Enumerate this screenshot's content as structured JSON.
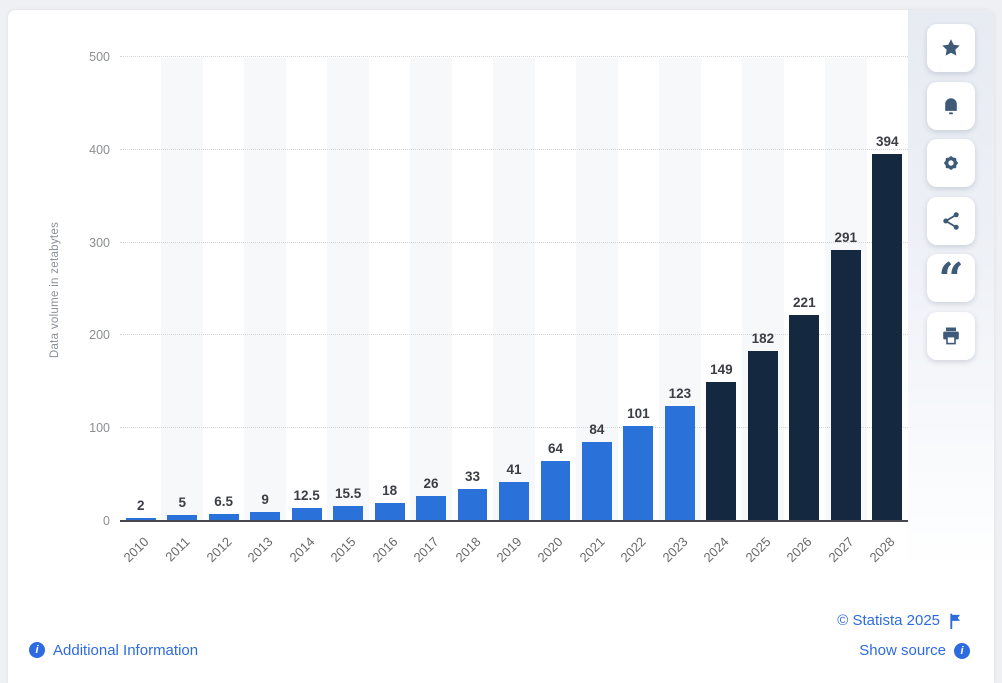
{
  "chart_data": {
    "type": "bar",
    "title": "",
    "ylabel": "Data volume in zetabytes",
    "xlabel": "",
    "categories": [
      "2010",
      "2011",
      "2012",
      "2013",
      "2014",
      "2015",
      "2016",
      "2017",
      "2018",
      "2019",
      "2020",
      "2021",
      "2022",
      "2023",
      "2024",
      "2025",
      "2026",
      "2027",
      "2028"
    ],
    "values": [
      2,
      5,
      6.5,
      9,
      12.5,
      15.5,
      18,
      26,
      33,
      41,
      64,
      84,
      101,
      123,
      149,
      182,
      221,
      291,
      394
    ],
    "ylim": [
      0,
      500
    ],
    "yticks": [
      0,
      100,
      200,
      300,
      400,
      500
    ],
    "grid": "horizontal-dotted",
    "legend": "none",
    "alternating_column_bands": true,
    "segments": [
      {
        "name": "actual",
        "from": "2010",
        "to": "2023",
        "color": "#2a71d9"
      },
      {
        "name": "forecast",
        "from": "2024",
        "to": "2028",
        "color": "#142840"
      }
    ],
    "forecast_start_index": 14
  },
  "toolbar": {
    "buttons": [
      {
        "name": "favorite",
        "icon": "star-icon"
      },
      {
        "name": "notifications",
        "icon": "bell-icon"
      },
      {
        "name": "settings",
        "icon": "gear-icon"
      },
      {
        "name": "share",
        "icon": "share-icon"
      },
      {
        "name": "cite",
        "icon": "quote-icon"
      },
      {
        "name": "print",
        "icon": "printer-icon"
      }
    ]
  },
  "footer": {
    "copyright": "© Statista 2025",
    "additional_information": "Additional Information",
    "show_source": "Show source"
  },
  "colors": {
    "bar_actual": "#2a71d9",
    "bar_forecast": "#142840",
    "link_blue": "#2e6be0",
    "icon_navy": "#3d5a78",
    "page_background": "#eef0f3",
    "band": "#f7f8f9"
  }
}
